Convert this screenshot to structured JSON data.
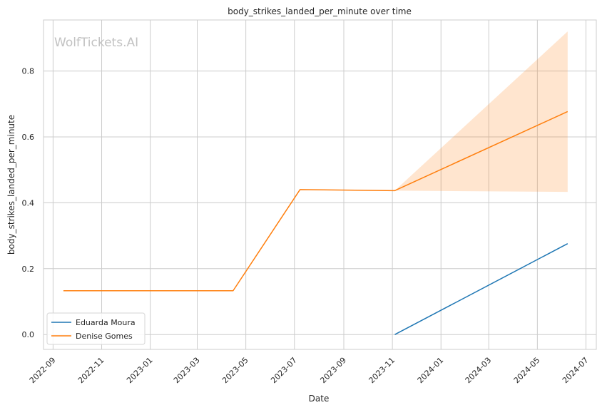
{
  "chart_data": {
    "type": "line",
    "title": "body_strikes_landed_per_minute over time",
    "xlabel": "Date",
    "ylabel": "body_strikes_landed_per_minute",
    "watermark": "WolfTickets.AI",
    "x_ticks": [
      "2022-09",
      "2022-11",
      "2023-01",
      "2023-03",
      "2023-05",
      "2023-07",
      "2023-09",
      "2023-11",
      "2024-01",
      "2024-03",
      "2024-05",
      "2024-07"
    ],
    "y_ticks": [
      "0.0",
      "0.2",
      "0.4",
      "0.6",
      "0.8"
    ],
    "xlim": [
      "2022-08-20",
      "2024-07-14"
    ],
    "ylim": [
      -0.045,
      0.955
    ],
    "grid": true,
    "legend_position": "lower-left",
    "series": [
      {
        "name": "Eduarda Moura",
        "color": "#1f77b4",
        "points": [
          {
            "x": "2023-11-04",
            "y": 0.0
          },
          {
            "x": "2024-06-08",
            "y": 0.276
          }
        ]
      },
      {
        "name": "Denise Gomes",
        "color": "#ff7f0e",
        "points": [
          {
            "x": "2022-09-14",
            "y": 0.133
          },
          {
            "x": "2023-04-15",
            "y": 0.133
          },
          {
            "x": "2023-07-08",
            "y": 0.44
          },
          {
            "x": "2023-11-04",
            "y": 0.437
          },
          {
            "x": "2024-06-08",
            "y": 0.677
          }
        ],
        "band": {
          "color": "#ff7f0e",
          "x": [
            "2023-11-04",
            "2024-06-08"
          ],
          "lower": [
            0.437,
            0.433
          ],
          "upper": [
            0.437,
            0.92
          ]
        }
      }
    ]
  }
}
